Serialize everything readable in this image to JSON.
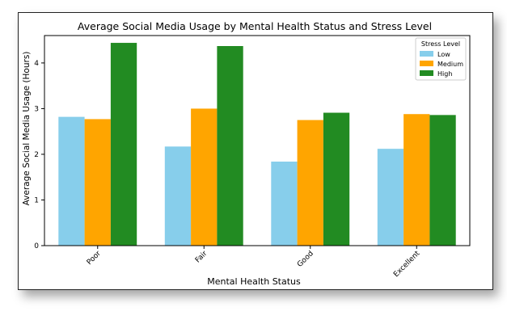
{
  "chart_data": {
    "type": "bar",
    "title": "Average Social Media Usage by Mental Health Status and Stress Level",
    "xlabel": "Mental Health Status",
    "ylabel": "Average Social Media Usage (Hours)",
    "categories": [
      "Poor",
      "Fair",
      "Good",
      "Excellent"
    ],
    "ylim": [
      0,
      4.6
    ],
    "yticks": [
      0,
      1,
      2,
      3,
      4
    ],
    "grid": false,
    "legend": {
      "title": "Stress Level",
      "placement": "top-right"
    },
    "series": [
      {
        "name": "Low",
        "color": "#87ceeb",
        "values": [
          2.82,
          2.17,
          1.84,
          2.12
        ]
      },
      {
        "name": "Medium",
        "color": "#ffa500",
        "values": [
          2.77,
          3.0,
          2.75,
          2.88
        ]
      },
      {
        "name": "High",
        "color": "#228b22",
        "values": [
          4.44,
          4.37,
          2.91,
          2.86
        ]
      }
    ]
  }
}
